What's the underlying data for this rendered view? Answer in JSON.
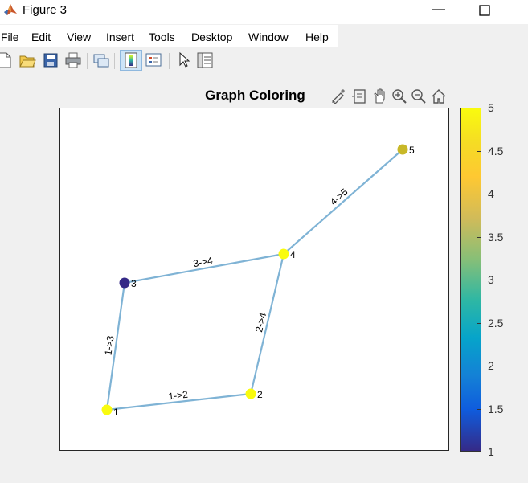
{
  "window": {
    "title": "Figure 3",
    "minimize_glyph": "—",
    "maximize_glyph": "☐",
    "app_icon": "matlab-logo-icon"
  },
  "menu": {
    "items": [
      "File",
      "Edit",
      "View",
      "Insert",
      "Tools",
      "Desktop",
      "Window",
      "Help"
    ]
  },
  "toolbar": {
    "icons": [
      "new-figure-icon",
      "open-file-icon",
      "save-icon",
      "print-icon",
      "link-plot-icon",
      "colorbar-toggle-icon",
      "legend-toggle-icon",
      "select-arrow-icon",
      "property-inspector-icon"
    ]
  },
  "axes_toolbar": {
    "icons": [
      "brush-icon",
      "data-tips-icon",
      "pan-icon",
      "zoom-in-icon",
      "zoom-out-icon",
      "restore-view-icon"
    ]
  },
  "plot": {
    "title": "Graph Coloring",
    "edge_color": "#7fb3d5",
    "nodes": [
      {
        "label": "1",
        "color_value": 5,
        "color": "#f9fb0e"
      },
      {
        "label": "2",
        "color_value": 5,
        "color": "#f9fb0e"
      },
      {
        "label": "3",
        "color_value": 1,
        "color": "#352a87"
      },
      {
        "label": "4",
        "color_value": 5,
        "color": "#f9fb0e"
      },
      {
        "label": "5",
        "color_value": 4,
        "color": "#c8b828"
      }
    ],
    "edges": [
      {
        "from": "1",
        "to": "2",
        "label": "1->2"
      },
      {
        "from": "1",
        "to": "3",
        "label": "1->3"
      },
      {
        "from": "2",
        "to": "4",
        "label": "2->4"
      },
      {
        "from": "3",
        "to": "4",
        "label": "3->4"
      },
      {
        "from": "4",
        "to": "5",
        "label": "4->5"
      }
    ]
  },
  "colorbar": {
    "ticks": [
      "5",
      "4.5",
      "4",
      "3.5",
      "3",
      "2.5",
      "2",
      "1.5",
      "1"
    ],
    "min": 1,
    "max": 5
  }
}
